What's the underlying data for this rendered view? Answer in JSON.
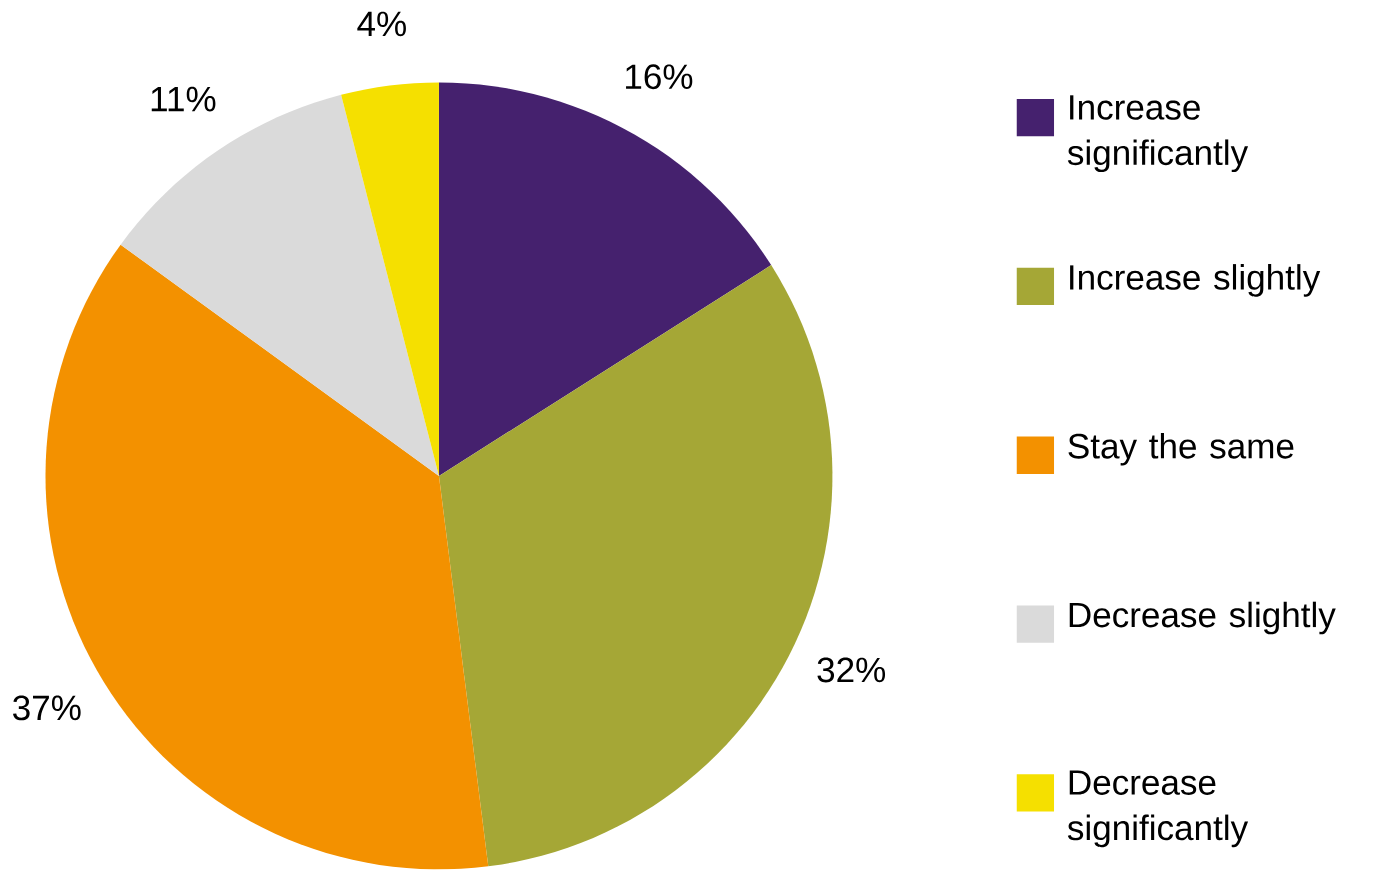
{
  "chart_data": {
    "type": "pie",
    "categories": [
      "Increase significantly",
      "Increase slightly",
      "Stay the same",
      "Decrease slightly",
      "Decrease significantly"
    ],
    "values": [
      16,
      32,
      37,
      11,
      4
    ],
    "colors": [
      "#45216e",
      "#a5a736",
      "#f39100",
      "#dadada",
      "#f5e000"
    ],
    "value_labels": [
      "16%",
      "32%",
      "37%",
      "11%",
      "4%"
    ],
    "legend": "right"
  }
}
